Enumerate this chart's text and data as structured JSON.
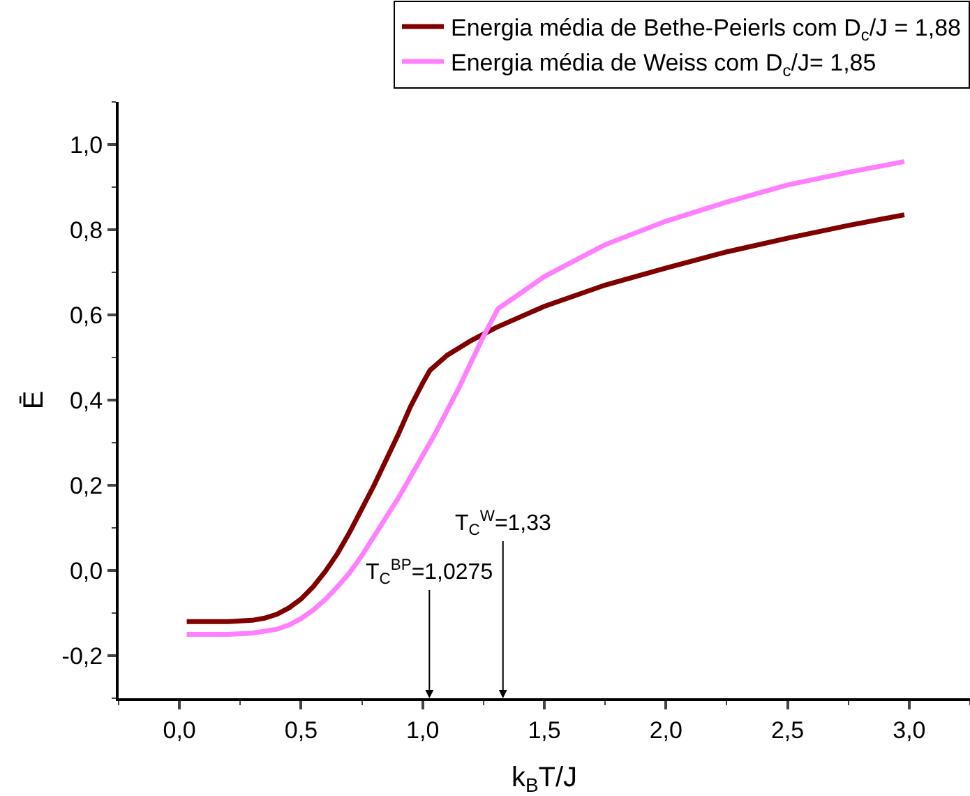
{
  "chart_data": {
    "type": "line",
    "xlabel": "k$_{B}$T/J",
    "ylabel": "Ē",
    "xlim": [
      -0.25,
      3.25
    ],
    "ylim": [
      -0.3,
      1.1
    ],
    "xticks": [
      {
        "value": 0,
        "label": "0,0"
      },
      {
        "value": 0.5,
        "label": "0,5"
      },
      {
        "value": 1,
        "label": "1,0"
      },
      {
        "value": 1.5,
        "label": "1,5"
      },
      {
        "value": 2,
        "label": "2,0"
      },
      {
        "value": 2.5,
        "label": "2,5"
      },
      {
        "value": 3,
        "label": "3,0"
      }
    ],
    "yticks": [
      {
        "value": -0.2,
        "label": "-0,2"
      },
      {
        "value": 0,
        "label": "0,0"
      },
      {
        "value": 0.2,
        "label": "0,2"
      },
      {
        "value": 0.4,
        "label": "0,4"
      },
      {
        "value": 0.6,
        "label": "0,6"
      },
      {
        "value": 0.8,
        "label": "0,8"
      },
      {
        "value": 1,
        "label": "1,0"
      }
    ],
    "grid": false,
    "legend": "top right",
    "marker": "none",
    "line_style": "solid",
    "series": [
      {
        "name": "Energia média de Bethe-Peierls com D$_{c}$/J = 1,88",
        "color": "#800000",
        "x": [
          0.03,
          0.2,
          0.3,
          0.35,
          0.4,
          0.45,
          0.5,
          0.55,
          0.6,
          0.65,
          0.7,
          0.75,
          0.8,
          0.85,
          0.9,
          0.95,
          1.0,
          1.03,
          1.1,
          1.2,
          1.3,
          1.5,
          1.75,
          2.0,
          2.25,
          2.5,
          2.75,
          2.98
        ],
        "values": [
          -0.12,
          -0.12,
          -0.117,
          -0.112,
          -0.103,
          -0.088,
          -0.067,
          -0.038,
          -0.002,
          0.04,
          0.09,
          0.145,
          0.2,
          0.26,
          0.32,
          0.385,
          0.44,
          0.47,
          0.505,
          0.54,
          0.57,
          0.62,
          0.67,
          0.71,
          0.748,
          0.78,
          0.81,
          0.835
        ]
      },
      {
        "name": "Energia média de Weiss com D$_{c}$/J= 1,85",
        "color": "#ff80ff",
        "x": [
          0.03,
          0.2,
          0.3,
          0.4,
          0.45,
          0.5,
          0.55,
          0.6,
          0.65,
          0.7,
          0.75,
          0.8,
          0.85,
          0.9,
          0.95,
          1.0,
          1.05,
          1.1,
          1.15,
          1.2,
          1.25,
          1.31,
          1.4,
          1.5,
          1.75,
          2.0,
          2.25,
          2.5,
          2.75,
          2.98
        ],
        "values": [
          -0.15,
          -0.15,
          -0.147,
          -0.138,
          -0.128,
          -0.113,
          -0.093,
          -0.068,
          -0.038,
          -0.005,
          0.035,
          0.08,
          0.125,
          0.17,
          0.22,
          0.27,
          0.32,
          0.375,
          0.43,
          0.49,
          0.55,
          0.615,
          0.65,
          0.69,
          0.765,
          0.82,
          0.865,
          0.905,
          0.935,
          0.96
        ]
      }
    ],
    "ref_lines": [
      {
        "axis": "x",
        "value": 1.0275,
        "label": "T$_{C}$$^{BP}$=1,0275"
      },
      {
        "axis": "x",
        "value": 1.33,
        "label": "T$_{C}$$^{W}$=1,33"
      }
    ]
  }
}
